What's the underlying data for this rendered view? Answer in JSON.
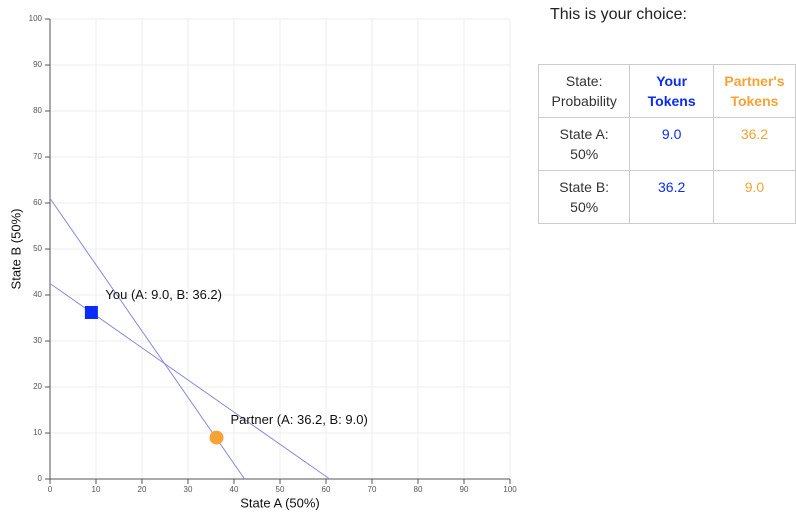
{
  "chart_data": {
    "type": "scatter",
    "xlabel": "State A (50%)",
    "ylabel": "State B (50%)",
    "xlim": [
      0,
      100
    ],
    "ylim": [
      0,
      100
    ],
    "xticks": [
      0,
      10,
      20,
      30,
      40,
      50,
      60,
      70,
      80,
      90,
      100
    ],
    "yticks": [
      0,
      10,
      20,
      30,
      40,
      50,
      60,
      70,
      80,
      90,
      100
    ],
    "grid": true,
    "lines": [
      {
        "x": [
          0,
          42.3
        ],
        "y": [
          61,
          0
        ],
        "color": "#8a86e0"
      },
      {
        "x": [
          0,
          60.8
        ],
        "y": [
          42.5,
          0
        ],
        "color": "#8a86e0"
      }
    ],
    "points": [
      {
        "x": 9.0,
        "y": 36.2,
        "label": "You (A: 9.0, B: 36.2)",
        "color": "#0a2cf5",
        "marker": "square"
      },
      {
        "x": 36.2,
        "y": 9.0,
        "label": "Partner (A: 36.2, B: 9.0)",
        "color": "#f5a335",
        "marker": "circle"
      }
    ]
  },
  "choice": {
    "title": "This is your choice:",
    "headers": [
      "State: Probability",
      "Your Tokens",
      "Partner's Tokens"
    ],
    "rows": [
      [
        "State A: 50%",
        "9.0",
        "36.2"
      ],
      [
        "State B: 50%",
        "36.2",
        "9.0"
      ]
    ]
  }
}
